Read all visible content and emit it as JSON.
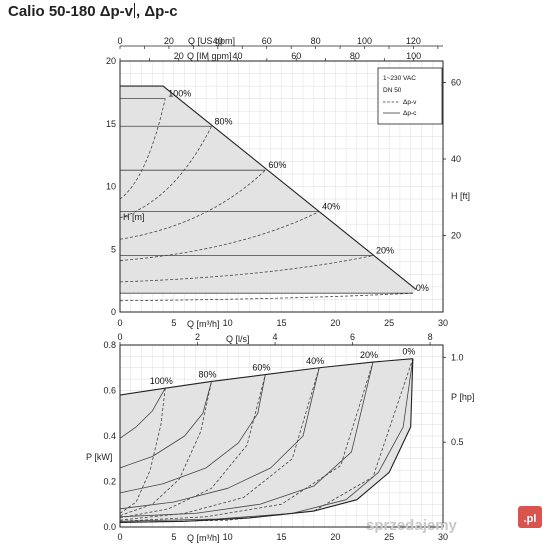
{
  "title": {
    "main": "Calio 50-180 Δp-v",
    "rest": ", Δp-c"
  },
  "legend": {
    "supply": "1~230 VAC",
    "size": "DN 50",
    "dashed_label": "Δp-v",
    "solid_label": "Δp-c"
  },
  "watermark": {
    "text": "sprzedajemy",
    "suffix": ".pl"
  },
  "chart_data": [
    {
      "type": "line",
      "name": "head",
      "xlabel": "Q [m³/h]",
      "ylabel": "H [m]",
      "y2label": "H [ft]",
      "x2label_us": "Q [US gpm]",
      "x2label_im": "Q [IM gpm]",
      "xlim": [
        0,
        30
      ],
      "ylim": [
        0,
        20
      ],
      "xticks": [
        0,
        5,
        10,
        15,
        20,
        25,
        30
      ],
      "yticks": [
        0,
        5,
        10,
        15,
        20
      ],
      "ft_ticks": [
        20,
        40,
        60
      ],
      "us_gpm_ticks": [
        0,
        20,
        40,
        60,
        80,
        100,
        120
      ],
      "im_gpm_ticks": [
        20,
        40,
        60,
        80,
        100
      ],
      "grid": true,
      "legend_position": "top-right",
      "max_curve": [
        [
          0,
          18
        ],
        [
          4,
          18
        ],
        [
          27.5,
          1.8
        ]
      ],
      "dp_c_lines": [
        {
          "label": "100%",
          "head": 17,
          "q_end": 4.2
        },
        {
          "label": "80%",
          "head": 14.8,
          "q_end": 8.5
        },
        {
          "label": "60%",
          "head": 11.3,
          "q_end": 13.5
        },
        {
          "label": "40%",
          "head": 8,
          "q_end": 18.5
        },
        {
          "label": "20%",
          "head": 4.5,
          "q_end": 23.5
        },
        {
          "label": "0%",
          "head": 1.5,
          "q_end": 27.2
        }
      ],
      "dp_v_curves": [
        {
          "label": "100%",
          "h0": 9,
          "q_end": 4.2,
          "h_end": 17
        },
        {
          "label": "80%",
          "h0": 7.5,
          "q_end": 8.5,
          "h_end": 14.8
        },
        {
          "label": "60%",
          "h0": 5.8,
          "q_end": 13.5,
          "h_end": 11.3
        },
        {
          "label": "40%",
          "h0": 4.1,
          "q_end": 18.5,
          "h_end": 8
        },
        {
          "label": "20%",
          "h0": 2.4,
          "q_end": 23.5,
          "h_end": 4.5
        },
        {
          "label": "0%",
          "h0": 0.9,
          "q_end": 27.2,
          "h_end": 1.5
        }
      ]
    },
    {
      "type": "line",
      "name": "power",
      "xlabel": "Q [m³/h]",
      "ylabel": "P [kW]",
      "y2label": "P [hp]",
      "x2label": "Q [l/s]",
      "xlim": [
        0,
        30
      ],
      "ylim": [
        0,
        0.8
      ],
      "xticks": [
        0,
        5,
        10,
        15,
        20,
        25,
        30
      ],
      "yticks": [
        0,
        0.2,
        0.4,
        0.6,
        0.8
      ],
      "ls_ticks": [
        0,
        2,
        4,
        6,
        8
      ],
      "hp_ticks": [
        0.5,
        1.0
      ],
      "grid": true,
      "top_curve": [
        [
          0,
          0.58
        ],
        [
          4.2,
          0.61
        ],
        [
          8.5,
          0.64
        ],
        [
          13.5,
          0.67
        ],
        [
          18.5,
          0.7
        ],
        [
          23.5,
          0.725
        ],
        [
          27.2,
          0.74
        ]
      ],
      "bottom_curve": [
        [
          0,
          0.02
        ],
        [
          6,
          0.025
        ],
        [
          12,
          0.04
        ],
        [
          18,
          0.07
        ],
        [
          22,
          0.12
        ],
        [
          25,
          0.24
        ],
        [
          27,
          0.44
        ],
        [
          27.2,
          0.74
        ]
      ],
      "dp_c_curves": [
        {
          "label": "100%",
          "points": [
            [
              0,
              0.39
            ],
            [
              1.5,
              0.44
            ],
            [
              3,
              0.51
            ],
            [
              4.2,
              0.61
            ]
          ]
        },
        {
          "label": "80%",
          "points": [
            [
              0,
              0.26
            ],
            [
              3,
              0.31
            ],
            [
              6,
              0.4
            ],
            [
              7.7,
              0.5
            ],
            [
              8.5,
              0.64
            ]
          ]
        },
        {
          "label": "60%",
          "points": [
            [
              0,
              0.15
            ],
            [
              4,
              0.19
            ],
            [
              8,
              0.26
            ],
            [
              11,
              0.37
            ],
            [
              12.8,
              0.5
            ],
            [
              13.5,
              0.67
            ]
          ]
        },
        {
          "label": "40%",
          "points": [
            [
              0,
              0.08
            ],
            [
              5,
              0.11
            ],
            [
              10,
              0.17
            ],
            [
              14,
              0.26
            ],
            [
              17,
              0.4
            ],
            [
              18.5,
              0.7
            ]
          ]
        },
        {
          "label": "20%",
          "points": [
            [
              0,
              0.045
            ],
            [
              7,
              0.06
            ],
            [
              13,
              0.1
            ],
            [
              18,
              0.18
            ],
            [
              21.5,
              0.33
            ],
            [
              23.5,
              0.725
            ]
          ]
        },
        {
          "label": "0%",
          "points": [
            [
              0,
              0.025
            ],
            [
              9,
              0.035
            ],
            [
              16,
              0.06
            ],
            [
              21,
              0.12
            ],
            [
              24,
              0.24
            ],
            [
              26.3,
              0.44
            ],
            [
              27.2,
              0.74
            ]
          ]
        }
      ],
      "dp_v_curves": [
        {
          "label": "100%",
          "points": [
            [
              0,
              0.06
            ],
            [
              1.5,
              0.11
            ],
            [
              2.8,
              0.25
            ],
            [
              3.8,
              0.45
            ],
            [
              4.2,
              0.61
            ]
          ]
        },
        {
          "label": "80%",
          "points": [
            [
              0,
              0.05
            ],
            [
              3,
              0.1
            ],
            [
              5.5,
              0.21
            ],
            [
              7.5,
              0.42
            ],
            [
              8.5,
              0.64
            ]
          ]
        },
        {
          "label": "60%",
          "points": [
            [
              0,
              0.04
            ],
            [
              4.5,
              0.08
            ],
            [
              8.5,
              0.17
            ],
            [
              11.8,
              0.36
            ],
            [
              13.5,
              0.67
            ]
          ]
        },
        {
          "label": "40%",
          "points": [
            [
              0,
              0.03
            ],
            [
              6,
              0.06
            ],
            [
              11.5,
              0.13
            ],
            [
              16,
              0.3
            ],
            [
              18.5,
              0.7
            ]
          ]
        },
        {
          "label": "20%",
          "points": [
            [
              0,
              0.025
            ],
            [
              8,
              0.045
            ],
            [
              15,
              0.1
            ],
            [
              20.5,
              0.27
            ],
            [
              23.5,
              0.725
            ]
          ]
        },
        {
          "label": "0%",
          "points": [
            [
              0,
              0.02
            ],
            [
              10,
              0.03
            ],
            [
              18,
              0.07
            ],
            [
              23.5,
              0.22
            ],
            [
              27.2,
              0.74
            ]
          ]
        }
      ]
    }
  ]
}
